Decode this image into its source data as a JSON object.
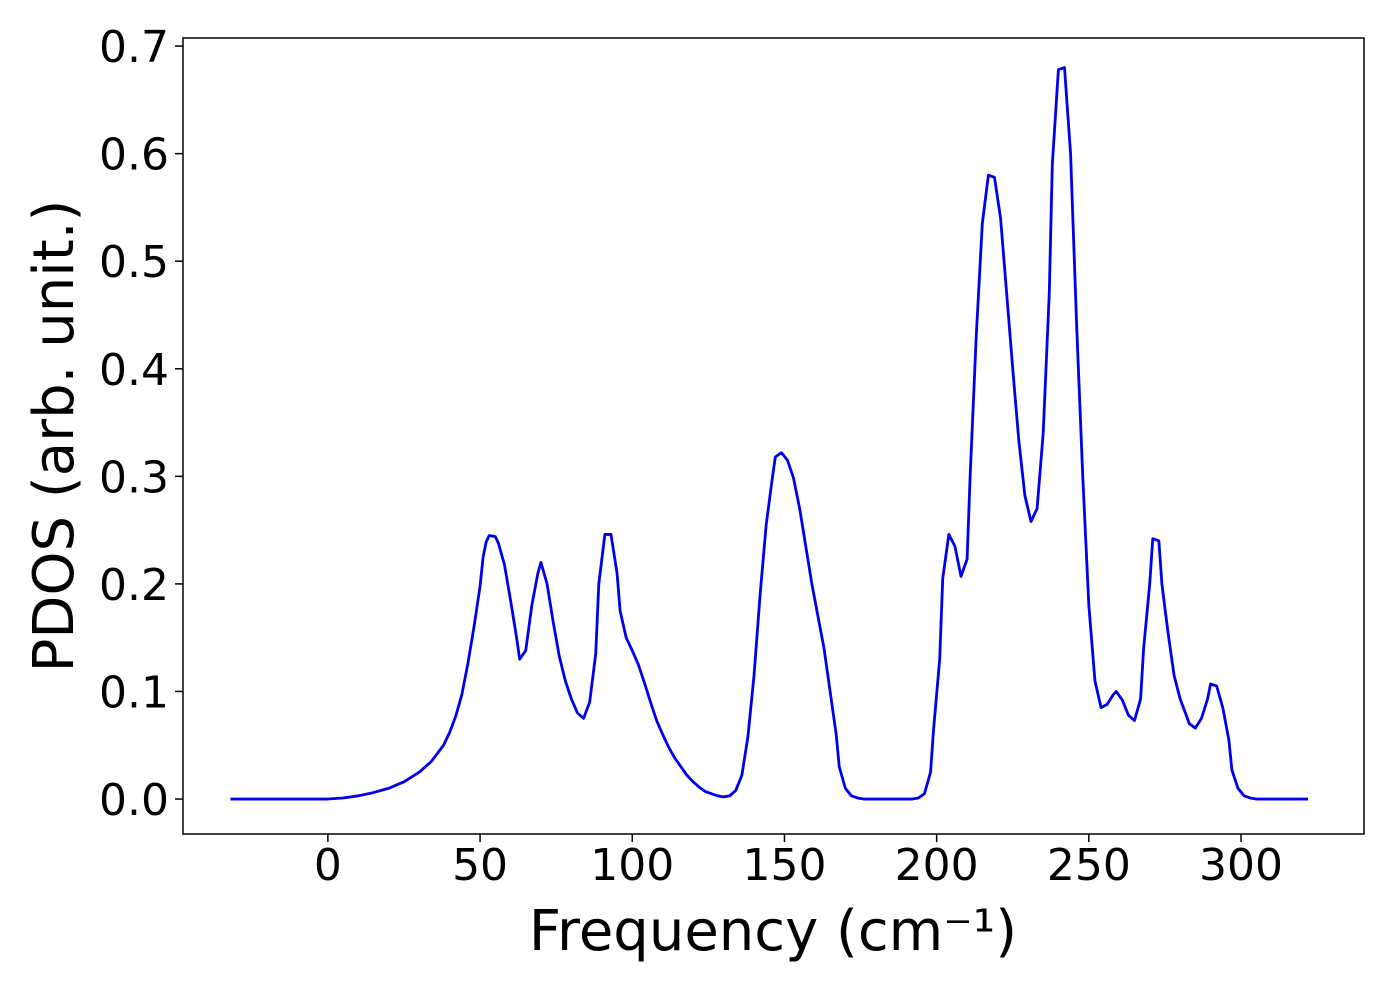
{
  "chart_data": {
    "type": "line",
    "xlabel": "Frequency (cm⁻¹)",
    "ylabel": "PDOS (arb. unit.)",
    "xlim": [
      -47.6,
      340.4
    ],
    "ylim": [
      -0.0325,
      0.7075
    ],
    "xticks": [
      0,
      50,
      100,
      150,
      200,
      250,
      300
    ],
    "yticks": [
      {
        "value": 0,
        "label": "0.0"
      },
      0.1,
      0.2,
      0.3,
      0.4,
      0.5,
      0.6,
      0.7
    ],
    "grid": false,
    "series": [
      {
        "color": "#0000ee",
        "x": [
          -32,
          -10,
          0,
          5,
          10,
          15,
          20,
          25,
          30,
          34,
          38,
          40,
          42,
          44,
          46,
          48,
          50,
          51,
          52,
          53,
          55,
          56,
          58,
          60,
          62,
          63,
          65,
          67,
          69,
          70,
          72,
          74,
          76,
          78,
          80,
          82,
          84,
          86,
          88,
          89,
          91,
          93,
          95,
          96,
          98,
          100,
          102,
          104,
          106,
          108,
          110,
          112,
          114,
          116,
          118,
          120,
          122,
          124,
          126,
          128,
          130,
          132,
          134,
          136,
          138,
          140,
          142,
          144,
          146,
          147,
          149,
          151,
          153,
          155,
          157,
          159,
          161,
          163,
          165,
          167,
          168,
          170,
          172,
          174,
          176,
          192,
          194,
          196,
          198,
          199,
          201,
          202,
          204,
          206,
          208,
          210,
          211,
          213,
          215,
          217,
          219,
          221,
          223,
          225,
          227,
          229,
          231,
          233,
          235,
          237,
          238,
          240,
          242,
          244,
          246,
          248,
          250,
          252,
          254,
          256,
          258,
          259,
          261,
          263,
          265,
          267,
          268,
          270,
          271,
          273,
          274,
          276,
          278,
          280,
          282,
          283,
          285,
          287,
          289,
          290,
          292,
          294,
          296,
          297,
          299,
          301,
          303,
          305,
          322
        ],
        "values": [
          0,
          0,
          0,
          0.001,
          0.003,
          0.006,
          0.01,
          0.016,
          0.025,
          0.035,
          0.05,
          0.062,
          0.077,
          0.097,
          0.126,
          0.16,
          0.198,
          0.225,
          0.239,
          0.245,
          0.244,
          0.238,
          0.218,
          0.185,
          0.15,
          0.13,
          0.138,
          0.18,
          0.21,
          0.22,
          0.2,
          0.165,
          0.133,
          0.11,
          0.093,
          0.08,
          0.075,
          0.09,
          0.135,
          0.2,
          0.246,
          0.246,
          0.21,
          0.175,
          0.15,
          0.138,
          0.125,
          0.108,
          0.09,
          0.073,
          0.06,
          0.048,
          0.038,
          0.03,
          0.022,
          0.016,
          0.011,
          0.007,
          0.005,
          0.003,
          0.002,
          0.003,
          0.008,
          0.022,
          0.058,
          0.115,
          0.19,
          0.255,
          0.298,
          0.318,
          0.322,
          0.315,
          0.298,
          0.27,
          0.235,
          0.2,
          0.17,
          0.14,
          0.1,
          0.06,
          0.03,
          0.01,
          0.003,
          0.001,
          0,
          0,
          0.001,
          0.005,
          0.025,
          0.065,
          0.13,
          0.205,
          0.246,
          0.235,
          0.207,
          0.223,
          0.3,
          0.43,
          0.535,
          0.58,
          0.578,
          0.54,
          0.47,
          0.4,
          0.333,
          0.282,
          0.258,
          0.27,
          0.34,
          0.47,
          0.59,
          0.678,
          0.68,
          0.6,
          0.44,
          0.3,
          0.18,
          0.11,
          0.085,
          0.088,
          0.097,
          0.1,
          0.092,
          0.078,
          0.073,
          0.093,
          0.14,
          0.2,
          0.242,
          0.24,
          0.2,
          0.155,
          0.115,
          0.093,
          0.078,
          0.07,
          0.066,
          0.075,
          0.093,
          0.107,
          0.105,
          0.085,
          0.055,
          0.027,
          0.01,
          0.003,
          0.001,
          0,
          0
        ]
      }
    ]
  }
}
